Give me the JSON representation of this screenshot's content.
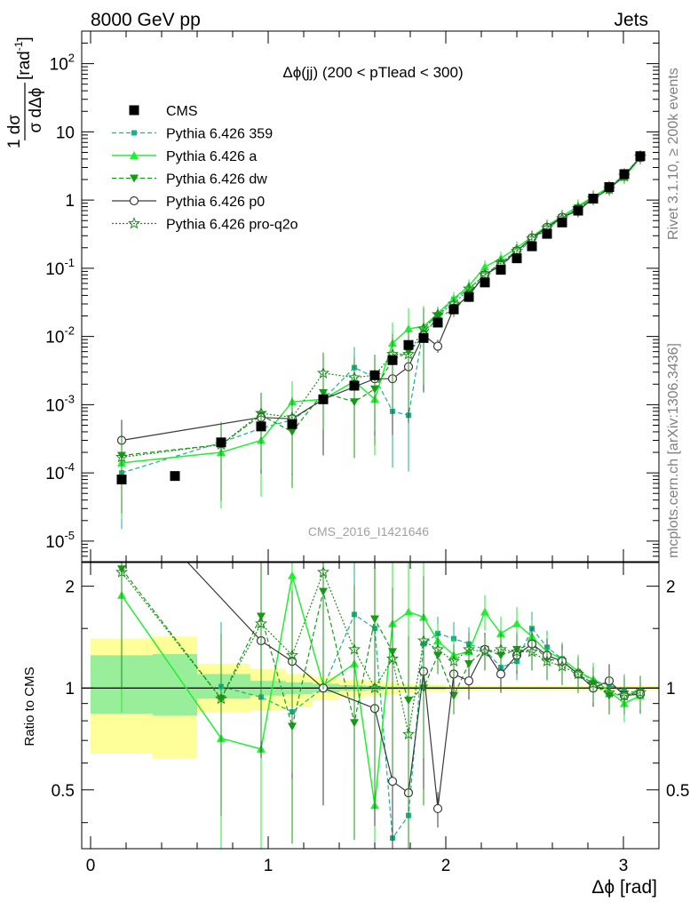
{
  "header": {
    "left_label": "8000 GeV pp",
    "right_label": "Jets"
  },
  "side_labels": {
    "rivet": "Rivet 3.1.10, ≥ 200k events",
    "mcplots": "mcplots.cern.ch [arXiv:1306.3436]"
  },
  "watermark": "CMS_2016_I1421646",
  "colors": {
    "cms": "#000000",
    "p359": "#19b28c",
    "a": "#22ee33",
    "dw": "#159c15",
    "p0": "#3a3a3a",
    "pro": "#1e8c1e",
    "band_outer": "#ffff99",
    "band_inner": "#99ee99"
  },
  "chart_data": [
    {
      "type": "line",
      "panel": "main",
      "title": "Δϕ(jj) (200 < pTlead <  300)",
      "ylabel_fraction_num": "1 dσ",
      "ylabel_fraction_den": "σ dΔϕ",
      "ylabel_unit": "[rad",
      "ylabel_exp": "-1",
      "yscale": "log",
      "xlim": [
        -0.05,
        3.2
      ],
      "ylim": [
        5e-06,
        300
      ],
      "yticks": [
        {
          "v": 1e-05,
          "base": "10",
          "exp": "-5"
        },
        {
          "v": 0.0001,
          "base": "10",
          "exp": "-4"
        },
        {
          "v": 0.001,
          "base": "10",
          "exp": "-3"
        },
        {
          "v": 0.01,
          "base": "10",
          "exp": "-2"
        },
        {
          "v": 0.1,
          "base": "10",
          "exp": "-1"
        },
        {
          "v": 1,
          "base": "1",
          "exp": ""
        },
        {
          "v": 10,
          "base": "10",
          "exp": ""
        },
        {
          "v": 100,
          "base": "10",
          "exp": "2"
        }
      ],
      "legend_position": "top-left",
      "series": [
        {
          "name": "CMS",
          "key": "cms",
          "x": [
            0.175,
            0.475,
            0.735,
            0.96,
            1.135,
            1.31,
            1.485,
            1.6,
            1.7,
            1.79,
            1.875,
            1.955,
            2.045,
            2.13,
            2.22,
            2.31,
            2.4,
            2.485,
            2.57,
            2.655,
            2.745,
            2.83,
            2.92,
            3.005,
            3.095
          ],
          "values": [
            8e-05,
            9e-05,
            0.00028,
            0.00048,
            0.00052,
            0.0012,
            0.0019,
            0.0027,
            0.0045,
            0.0075,
            0.0095,
            0.016,
            0.025,
            0.038,
            0.062,
            0.095,
            0.14,
            0.21,
            0.32,
            0.47,
            0.7,
            1.05,
            1.55,
            2.4,
            4.4
          ]
        },
        {
          "name": "Pythia 6.426 359",
          "key": "p359",
          "x": [
            0.175,
            0.735,
            0.96,
            1.135,
            1.31,
            1.485,
            1.6,
            1.7,
            1.79,
            1.875,
            1.955,
            2.045,
            2.13,
            2.22,
            2.31,
            2.4,
            2.485,
            2.57,
            2.655,
            2.745,
            2.83,
            2.92,
            3.005,
            3.095
          ],
          "values": [
            0.0001,
            0.00028,
            0.00045,
            0.0006,
            0.0012,
            0.0035,
            0.0025,
            0.0008,
            0.0007,
            0.013,
            0.021,
            0.035,
            0.05,
            0.08,
            0.11,
            0.17,
            0.26,
            0.38,
            0.54,
            0.78,
            1.1,
            1.55,
            2.35,
            4.3
          ]
        },
        {
          "name": "Pythia 6.426 a",
          "key": "a",
          "x": [
            0.175,
            0.735,
            0.96,
            1.135,
            1.31,
            1.485,
            1.6,
            1.7,
            1.79,
            1.875,
            1.955,
            2.045,
            2.13,
            2.22,
            2.31,
            2.4,
            2.485,
            2.57,
            2.655,
            2.745,
            2.83,
            2.92,
            3.005,
            3.095
          ],
          "values": [
            0.00014,
            0.0002,
            0.0003,
            0.0011,
            0.0012,
            0.0022,
            0.0012,
            0.008,
            0.013,
            0.014,
            0.022,
            0.036,
            0.055,
            0.105,
            0.14,
            0.2,
            0.29,
            0.42,
            0.58,
            0.82,
            1.12,
            1.55,
            2.15,
            4.2
          ]
        },
        {
          "name": "Pythia 6.426 dw",
          "key": "dw",
          "x": [
            0.175,
            0.735,
            0.96,
            1.135,
            1.31,
            1.485,
            1.6,
            1.7,
            1.79,
            1.875,
            1.955,
            2.045,
            2.13,
            2.22,
            2.31,
            2.4,
            2.485,
            2.57,
            2.655,
            2.745,
            2.83,
            2.92,
            3.005,
            3.095
          ],
          "values": [
            0.00018,
            0.00026,
            0.0007,
            0.0004,
            0.0015,
            0.0011,
            0.0017,
            0.0045,
            0.006,
            0.01,
            0.02,
            0.024,
            0.042,
            0.08,
            0.12,
            0.18,
            0.27,
            0.39,
            0.55,
            0.77,
            1.08,
            1.5,
            2.3,
            4.3
          ]
        },
        {
          "name": "Pythia 6.426 p0",
          "key": "p0",
          "x": [
            0.175,
            0.96,
            1.135,
            1.31,
            1.6,
            1.7,
            1.79,
            1.875,
            1.955,
            2.045,
            2.13,
            2.22,
            2.31,
            2.4,
            2.485,
            2.57,
            2.655,
            2.745,
            2.83,
            2.92,
            3.005,
            3.095
          ],
          "values": [
            0.0003,
            0.00065,
            0.00062,
            0.0012,
            0.0024,
            0.0024,
            0.0036,
            0.0105,
            0.0072,
            0.026,
            0.04,
            0.08,
            0.11,
            0.18,
            0.28,
            0.4,
            0.56,
            0.7,
            1.05,
            1.45,
            2.3,
            4.2
          ]
        },
        {
          "name": "Pythia 6.426 pro-q2o",
          "key": "pro",
          "x": [
            0.175,
            0.735,
            0.96,
            1.135,
            1.31,
            1.485,
            1.6,
            1.7,
            1.79,
            1.875,
            1.955,
            2.045,
            2.13,
            2.22,
            2.31,
            2.4,
            2.485,
            2.57,
            2.655,
            2.745,
            2.83,
            2.92,
            3.005,
            3.095
          ],
          "values": [
            0.00017,
            0.00026,
            0.00075,
            0.00065,
            0.0029,
            0.0025,
            0.0027,
            0.0055,
            0.0055,
            0.013,
            0.021,
            0.03,
            0.05,
            0.08,
            0.12,
            0.18,
            0.27,
            0.39,
            0.54,
            0.75,
            1.05,
            1.45,
            2.25,
            4.3
          ]
        }
      ]
    },
    {
      "type": "line",
      "panel": "ratio",
      "ylabel": "Ratio to CMS",
      "xlabel": "Δϕ [rad]",
      "xlim": [
        -0.05,
        3.2
      ],
      "ylim": [
        0.335,
        2.35
      ],
      "xticks": [
        0,
        1,
        2,
        3
      ],
      "yticks": [
        0.5,
        1,
        2
      ],
      "band_edges": [
        0,
        0.35,
        0.6,
        0.9,
        1.1,
        1.25,
        1.4,
        1.55,
        1.65,
        1.75,
        1.85,
        2.0,
        2.2,
        2.4,
        2.6,
        2.8,
        3.0,
        3.2
      ],
      "band_outer": [
        [
          0.64,
          1.4
        ],
        [
          0.62,
          1.42
        ],
        [
          0.85,
          1.18
        ],
        [
          0.86,
          1.14
        ],
        [
          0.88,
          1.1
        ],
        [
          0.92,
          1.08
        ],
        [
          0.94,
          1.06
        ],
        [
          0.95,
          1.05
        ],
        [
          0.96,
          1.04
        ],
        [
          0.97,
          1.03
        ],
        [
          0.975,
          1.025
        ],
        [
          0.98,
          1.02
        ],
        [
          0.985,
          1.015
        ],
        [
          0.985,
          1.015
        ],
        [
          0.985,
          1.015
        ],
        [
          0.985,
          1.015
        ],
        [
          0.985,
          1.015
        ]
      ],
      "band_inner": [
        [
          0.84,
          1.25
        ],
        [
          0.83,
          1.26
        ],
        [
          0.93,
          1.1
        ],
        [
          0.95,
          1.05
        ],
        [
          0.96,
          1.04
        ],
        [
          0.97,
          1.03
        ],
        [
          0.98,
          1.02
        ],
        [
          0.985,
          1.015
        ],
        [
          0.99,
          1.01
        ],
        [
          0.99,
          1.01
        ],
        [
          0.99,
          1.01
        ],
        [
          0.995,
          1.005
        ],
        [
          0.995,
          1.005
        ],
        [
          0.995,
          1.005
        ],
        [
          0.995,
          1.005
        ],
        [
          0.995,
          1.005
        ],
        [
          0.995,
          1.005
        ]
      ],
      "series": [
        {
          "name": "Pythia 6.426 359",
          "key": "p359",
          "x": [
            0.735,
            0.96,
            1.135,
            1.31,
            1.485,
            1.6,
            1.7,
            1.79,
            1.875,
            1.955,
            2.045,
            2.13,
            2.22,
            2.31,
            2.4,
            2.485,
            2.57,
            2.655,
            2.745,
            2.83,
            2.92,
            3.005,
            3.095
          ],
          "values": [
            1.01,
            0.94,
            0.85,
            1.0,
            1.65,
            1.5,
            0.36,
            0.42,
            1.35,
            1.45,
            1.4,
            1.35,
            1.3,
            1.15,
            1.2,
            1.5,
            1.32,
            1.22,
            1.12,
            1.05,
            1.02,
            0.98,
            0.97
          ]
        },
        {
          "name": "Pythia 6.426 a",
          "key": "a",
          "x": [
            0.175,
            0.735,
            0.96,
            1.135,
            1.31,
            1.485,
            1.6,
            1.7,
            1.79,
            1.875,
            1.955,
            2.045,
            2.13,
            2.22,
            2.31,
            2.4,
            2.485,
            2.57,
            2.655,
            2.745,
            2.83,
            2.92,
            3.005,
            3.095
          ],
          "values": [
            1.88,
            0.71,
            0.66,
            2.15,
            1.02,
            1.18,
            0.45,
            1.55,
            1.68,
            1.62,
            1.38,
            1.25,
            1.28,
            1.68,
            1.45,
            1.55,
            1.42,
            1.28,
            1.22,
            1.12,
            1.06,
            0.98,
            0.9,
            0.95
          ]
        },
        {
          "name": "Pythia 6.426 dw",
          "key": "dw",
          "x": [
            0.175,
            0.735,
            0.96,
            1.135,
            1.31,
            1.485,
            1.6,
            1.7,
            1.79,
            1.875,
            1.955,
            2.045,
            2.13,
            2.22,
            2.31,
            2.4,
            2.485,
            2.57,
            2.655,
            2.745,
            2.83,
            2.92,
            3.005,
            3.095
          ],
          "values": [
            2.25,
            0.93,
            1.63,
            0.77,
            1.93,
            0.79,
            1.6,
            1.28,
            0.92,
            1.0,
            1.25,
            0.95,
            1.18,
            1.3,
            1.25,
            1.3,
            1.35,
            1.22,
            1.2,
            1.1,
            1.03,
            0.95,
            0.96,
            0.97
          ]
        },
        {
          "name": "Pythia 6.426 p0",
          "key": "p0",
          "x": [
            0.175,
            0.96,
            1.135,
            1.31,
            1.6,
            1.7,
            1.79,
            1.875,
            1.955,
            2.045,
            2.13,
            2.22,
            2.31,
            2.4,
            2.485,
            2.57,
            2.655,
            2.745,
            2.83,
            2.92,
            3.005,
            3.095
          ],
          "values": [
            3.8,
            1.38,
            1.2,
            1.0,
            0.87,
            0.53,
            0.49,
            1.12,
            0.44,
            1.1,
            1.05,
            1.3,
            1.1,
            1.25,
            1.35,
            1.25,
            1.2,
            1.1,
            1.0,
            1.05,
            0.95,
            0.96
          ]
        },
        {
          "name": "Pythia 6.426 pro-q2o",
          "key": "pro",
          "x": [
            0.175,
            0.735,
            0.96,
            1.135,
            1.31,
            1.485,
            1.6,
            1.7,
            1.79,
            1.875,
            1.955,
            2.045,
            2.13,
            2.22,
            2.31,
            2.4,
            2.485,
            2.57,
            2.655,
            2.745,
            2.83,
            2.92,
            3.005,
            3.095
          ],
          "values": [
            2.2,
            0.93,
            1.55,
            1.25,
            2.2,
            1.3,
            1.0,
            1.22,
            0.73,
            1.38,
            1.3,
            1.2,
            1.3,
            1.28,
            1.3,
            1.28,
            1.28,
            1.2,
            1.16,
            1.1,
            1.03,
            0.97,
            0.95,
            0.97
          ]
        }
      ]
    }
  ]
}
